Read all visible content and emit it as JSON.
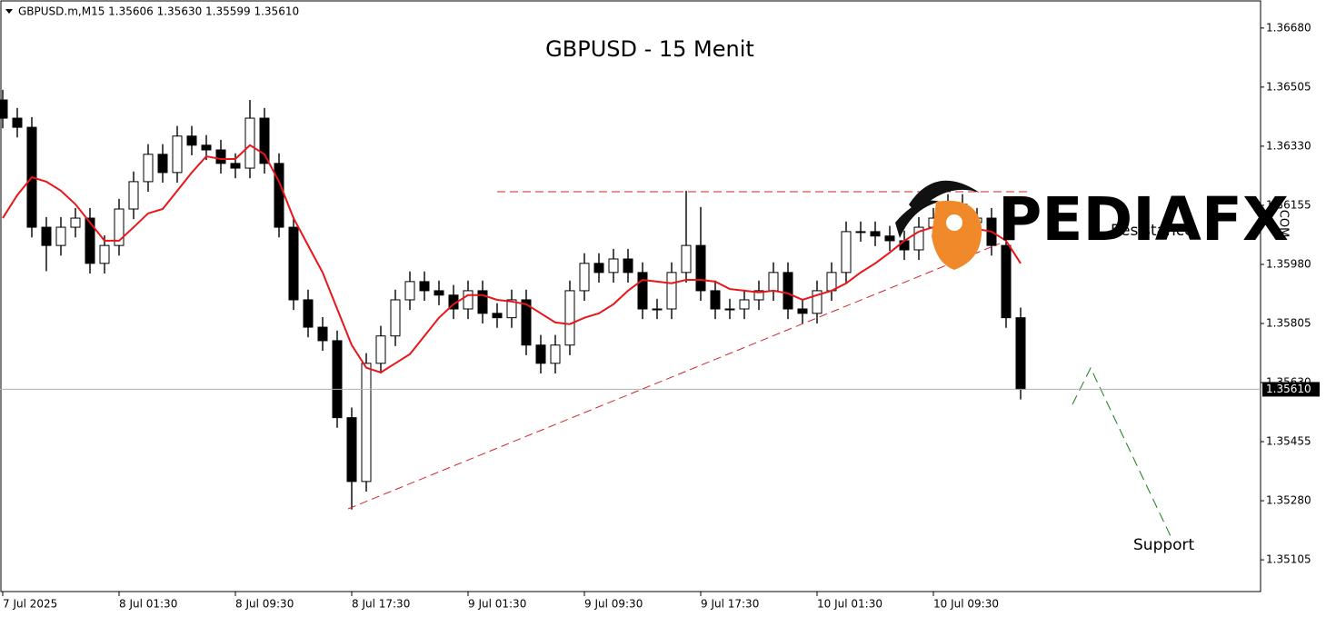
{
  "chart_data": {
    "type": "candlestick",
    "header": "GBPUSD.m,M15  1.35606 1.35630 1.35599 1.35610",
    "title": "GBPUSD - 15 Menit",
    "logo": "PEDIAFX",
    "logo_suffix": ".COM",
    "annotations": [
      "Resistance",
      "Support"
    ],
    "categories": [
      "7 Jul 2025",
      null,
      null,
      null,
      null,
      null,
      null,
      null,
      "8 Jul 01:30",
      null,
      null,
      null,
      null,
      null,
      null,
      null,
      "8 Jul 09:30",
      null,
      null,
      null,
      null,
      null,
      null,
      null,
      "8 Jul 17:30",
      null,
      null,
      null,
      null,
      null,
      null,
      null,
      "9 Jul 01:30",
      null,
      null,
      null,
      null,
      null,
      null,
      null,
      "9 Jul 09:30",
      null,
      null,
      null,
      null,
      null,
      null,
      null,
      "9 Jul 17:30",
      null,
      null,
      null,
      null,
      null,
      null,
      null,
      "10 Jul 01:30",
      null,
      null,
      null,
      null,
      null,
      null,
      null,
      "10 Jul 09:30",
      null,
      null,
      null,
      null,
      null,
      null
    ],
    "open": [
      1.36467,
      1.36413,
      1.36386,
      1.3609,
      1.36036,
      1.3609,
      1.36117,
      1.35983,
      1.36036,
      1.36144,
      1.36225,
      1.36306,
      1.36252,
      1.3636,
      1.36333,
      1.36319,
      1.36279,
      1.36265,
      1.36413,
      1.36279,
      1.3609,
      1.35875,
      1.35794,
      1.35754,
      1.35526,
      1.35337,
      1.35687,
      1.35768,
      1.35875,
      1.35929,
      1.35902,
      1.35889,
      1.35848,
      1.35902,
      1.35835,
      1.35822,
      1.35875,
      1.35741,
      1.35687,
      1.35741,
      1.35902,
      1.35983,
      1.35956,
      1.35996,
      1.35956,
      1.35848,
      1.35848,
      1.35956,
      1.36036,
      1.35902,
      1.35848,
      1.35848,
      1.35875,
      1.35902,
      1.35956,
      1.35848,
      1.35835,
      1.35902,
      1.35956,
      1.36077,
      1.36077,
      1.36064,
      1.3605,
      1.36023,
      1.3609,
      1.36117,
      1.36158,
      1.36104,
      1.36117,
      1.36036,
      1.35822
    ],
    "high": [
      1.36497,
      1.36443,
      1.36416,
      1.3612,
      1.3612,
      1.36147,
      1.36147,
      1.36066,
      1.36174,
      1.36255,
      1.36336,
      1.36336,
      1.3639,
      1.3639,
      1.36363,
      1.36349,
      1.36309,
      1.36467,
      1.36443,
      1.36309,
      1.3612,
      1.35905,
      1.35824,
      1.35784,
      1.35556,
      1.35717,
      1.35798,
      1.35905,
      1.35959,
      1.35959,
      1.35932,
      1.35919,
      1.35932,
      1.35932,
      1.35865,
      1.35905,
      1.35905,
      1.35771,
      1.35771,
      1.35932,
      1.36013,
      1.36013,
      1.36026,
      1.36026,
      1.35986,
      1.35878,
      1.35986,
      1.36198,
      1.3615,
      1.35932,
      1.35878,
      1.35905,
      1.35932,
      1.35986,
      1.35986,
      1.35878,
      1.35932,
      1.35986,
      1.36107,
      1.36107,
      1.36107,
      1.36094,
      1.3608,
      1.3612,
      1.36147,
      1.36188,
      1.36188,
      1.36147,
      1.36147,
      1.36066,
      1.35852
    ],
    "low": [
      1.36383,
      1.36356,
      1.3606,
      1.3596,
      1.36006,
      1.3606,
      1.35953,
      1.35953,
      1.36006,
      1.36114,
      1.36195,
      1.36222,
      1.36222,
      1.36303,
      1.36289,
      1.36249,
      1.36235,
      1.36235,
      1.36249,
      1.3606,
      1.35845,
      1.35764,
      1.35724,
      1.35496,
      1.35254,
      1.35307,
      1.35657,
      1.35738,
      1.35845,
      1.35872,
      1.35859,
      1.35818,
      1.35818,
      1.35805,
      1.35792,
      1.35792,
      1.35711,
      1.35657,
      1.35657,
      1.35711,
      1.35872,
      1.35926,
      1.35926,
      1.35926,
      1.35818,
      1.35818,
      1.35818,
      1.35926,
      1.35872,
      1.35818,
      1.35818,
      1.35818,
      1.35845,
      1.35872,
      1.35818,
      1.35805,
      1.35805,
      1.35872,
      1.35926,
      1.36047,
      1.36034,
      1.3602,
      1.35993,
      1.35993,
      1.3606,
      1.36087,
      1.36074,
      1.36074,
      1.36006,
      1.35792,
      1.3558
    ],
    "close": [
      1.36413,
      1.36386,
      1.3609,
      1.36036,
      1.3609,
      1.36117,
      1.35983,
      1.36036,
      1.36144,
      1.36225,
      1.36306,
      1.36252,
      1.3636,
      1.36333,
      1.36319,
      1.36279,
      1.36265,
      1.36413,
      1.36279,
      1.3609,
      1.35875,
      1.35794,
      1.35754,
      1.35526,
      1.35337,
      1.35687,
      1.35768,
      1.35875,
      1.35929,
      1.35902,
      1.35889,
      1.35848,
      1.35902,
      1.35835,
      1.35822,
      1.35875,
      1.35741,
      1.35687,
      1.35741,
      1.35902,
      1.35983,
      1.35956,
      1.35996,
      1.35956,
      1.35848,
      1.35848,
      1.35956,
      1.36036,
      1.35902,
      1.35848,
      1.35848,
      1.35875,
      1.35902,
      1.35956,
      1.35848,
      1.35835,
      1.35902,
      1.35956,
      1.36077,
      1.36077,
      1.36064,
      1.3605,
      1.36023,
      1.3609,
      1.36117,
      1.36158,
      1.36104,
      1.36117,
      1.36036,
      1.35822,
      1.3561
    ],
    "ma": {
      "color": "#e8161b",
      "values": [
        1.36117,
        1.36185,
        1.36238,
        1.36225,
        1.36198,
        1.36158,
        1.36104,
        1.3605,
        1.3605,
        1.3609,
        1.36131,
        1.36144,
        1.36198,
        1.36252,
        1.363,
        1.36292,
        1.36292,
        1.36333,
        1.36306,
        1.36225,
        1.36117,
        1.36036,
        1.35956,
        1.35848,
        1.35741,
        1.35674,
        1.3566,
        1.35687,
        1.35714,
        1.35768,
        1.35822,
        1.35862,
        1.35889,
        1.35889,
        1.35875,
        1.3587,
        1.35862,
        1.35835,
        1.35808,
        1.35803,
        1.35822,
        1.35835,
        1.35862,
        1.35902,
        1.35934,
        1.35929,
        1.35924,
        1.35934,
        1.35934,
        1.35929,
        1.35907,
        1.35902,
        1.35897,
        1.35902,
        1.35894,
        1.35875,
        1.35889,
        1.35902,
        1.35924,
        1.35956,
        1.35983,
        1.36015,
        1.3605,
        1.36077,
        1.3609,
        1.36096,
        1.3609,
        1.36085,
        1.36077,
        1.3605,
        1.35983
      ]
    },
    "up_color": "#ffffff",
    "down_color": "#000000",
    "ylim": [
      1.35011,
      1.36763
    ],
    "yticks": [
      {
        "value": 1.3668,
        "label": "1.36680"
      },
      1.36505,
      {
        "value": 1.3633,
        "label": "1.36330"
      },
      1.36155,
      {
        "value": 1.3598,
        "label": "1.35980"
      },
      1.35805,
      {
        "value": 1.3563,
        "label": "1.35630"
      },
      1.35455,
      {
        "value": 1.3528,
        "label": "1.35280"
      },
      1.35105
    ],
    "last_price": {
      "value": 1.3561,
      "label": "1.35610"
    }
  }
}
